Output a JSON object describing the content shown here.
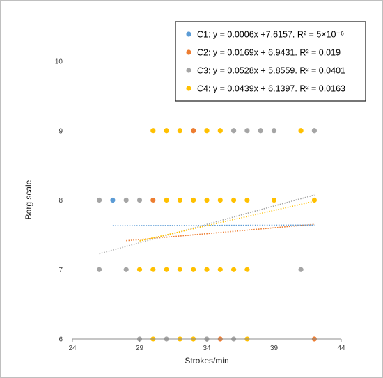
{
  "chart_data": {
    "type": "scatter",
    "xlabel": "Strokes/min",
    "ylabel": "Borg scale",
    "xlim": [
      24,
      44
    ],
    "ylim": [
      6,
      10
    ],
    "xticks": [
      24,
      29,
      34,
      39,
      44
    ],
    "yticks": [
      6,
      7,
      8,
      9,
      10
    ],
    "grid": false,
    "legend_position": "top-right",
    "series": [
      {
        "name": "C1: y = 0.0006x +7.6157. R² = 5×10⁻⁶",
        "color": "#5b9bd5",
        "trend": {
          "slope": 0.0006,
          "intercept": 7.6157,
          "x_range": [
            27,
            42
          ]
        },
        "points": [
          {
            "x": 27,
            "y": 8
          }
        ]
      },
      {
        "name": "C2: y =  0.0169x + 6.9431. R² = 0.019",
        "color": "#ed7d31",
        "trend": {
          "slope": 0.0169,
          "intercept": 6.9431,
          "x_range": [
            28,
            42
          ]
        },
        "points": [
          {
            "x": 30,
            "y": 8
          },
          {
            "x": 33,
            "y": 9
          },
          {
            "x": 35,
            "y": 6
          },
          {
            "x": 42,
            "y": 6
          }
        ]
      },
      {
        "name": "C3: y = 0.0528x + 5.8559. R² = 0.0401",
        "color": "#a5a5a5",
        "trend": {
          "slope": 0.0528,
          "intercept": 5.8559,
          "x_range": [
            26,
            42
          ]
        },
        "points": [
          {
            "x": 26,
            "y": 8
          },
          {
            "x": 28,
            "y": 8
          },
          {
            "x": 29,
            "y": 8
          },
          {
            "x": 26,
            "y": 7
          },
          {
            "x": 28,
            "y": 7
          },
          {
            "x": 41,
            "y": 7
          },
          {
            "x": 29,
            "y": 6
          },
          {
            "x": 31,
            "y": 6
          },
          {
            "x": 34,
            "y": 6
          },
          {
            "x": 36,
            "y": 6
          },
          {
            "x": 36,
            "y": 9
          },
          {
            "x": 37,
            "y": 9
          },
          {
            "x": 38,
            "y": 9
          },
          {
            "x": 39,
            "y": 9
          },
          {
            "x": 42,
            "y": 9
          }
        ]
      },
      {
        "name": "C4: y = 0.0439x + 6.1397. R² = 0.0163",
        "color": "#ffc000",
        "trend": {
          "slope": 0.0439,
          "intercept": 6.1397,
          "x_range": [
            29,
            42
          ]
        },
        "points": [
          {
            "x": 30,
            "y": 9
          },
          {
            "x": 31,
            "y": 9
          },
          {
            "x": 32,
            "y": 9
          },
          {
            "x": 34,
            "y": 9
          },
          {
            "x": 35,
            "y": 9
          },
          {
            "x": 41,
            "y": 9
          },
          {
            "x": 31,
            "y": 8
          },
          {
            "x": 32,
            "y": 8
          },
          {
            "x": 33,
            "y": 8
          },
          {
            "x": 34,
            "y": 8
          },
          {
            "x": 35,
            "y": 8
          },
          {
            "x": 36,
            "y": 8
          },
          {
            "x": 37,
            "y": 8
          },
          {
            "x": 39,
            "y": 8
          },
          {
            "x": 42,
            "y": 8
          },
          {
            "x": 29,
            "y": 7
          },
          {
            "x": 30,
            "y": 7
          },
          {
            "x": 31,
            "y": 7
          },
          {
            "x": 32,
            "y": 7
          },
          {
            "x": 33,
            "y": 7
          },
          {
            "x": 34,
            "y": 7
          },
          {
            "x": 35,
            "y": 7
          },
          {
            "x": 36,
            "y": 7
          },
          {
            "x": 37,
            "y": 7
          },
          {
            "x": 30,
            "y": 6
          },
          {
            "x": 32,
            "y": 6
          },
          {
            "x": 33,
            "y": 6
          },
          {
            "x": 37,
            "y": 6
          }
        ]
      }
    ]
  }
}
